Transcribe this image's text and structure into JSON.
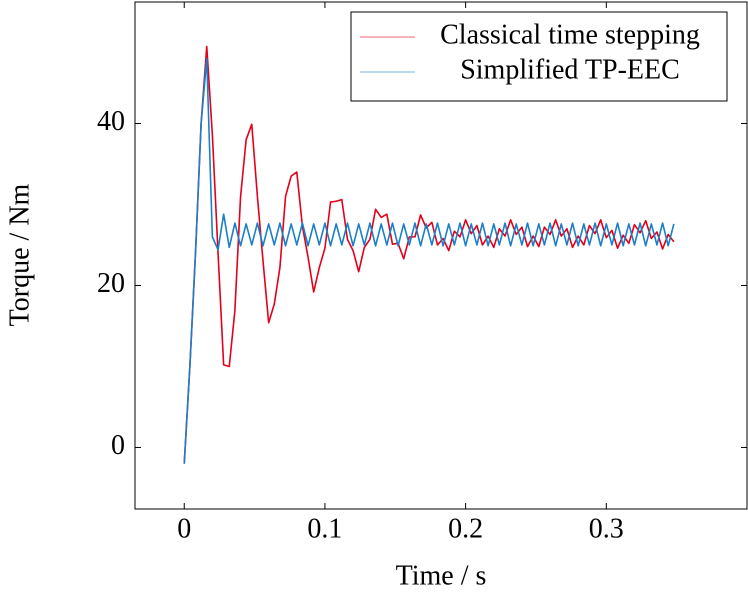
{
  "chart_data": {
    "type": "line",
    "xlabel": "Time / s",
    "ylabel": "Torque / Nm",
    "xlim": [
      -0.035,
      0.4
    ],
    "ylim": [
      -7.6,
      55
    ],
    "xticks": [
      0,
      0.1,
      0.2,
      0.3
    ],
    "yticks": [
      0,
      20,
      40
    ],
    "legend": "north east",
    "x": [
      0,
      0.004,
      0.008,
      0.012,
      0.016,
      0.02,
      0.024,
      0.028,
      0.032,
      0.036,
      0.04,
      0.044,
      0.048,
      0.052,
      0.056,
      0.06,
      0.064,
      0.068,
      0.072,
      0.076,
      0.08,
      0.084,
      0.088,
      0.092,
      0.096,
      0.1,
      0.104,
      0.108,
      0.112,
      0.116,
      0.12,
      0.124,
      0.128,
      0.132,
      0.136,
      0.14,
      0.144,
      0.148,
      0.152,
      0.156,
      0.16,
      0.164,
      0.168,
      0.172,
      0.176,
      0.18,
      0.184,
      0.188,
      0.192,
      0.196,
      0.2,
      0.204,
      0.208,
      0.212,
      0.216,
      0.22,
      0.224,
      0.228,
      0.232,
      0.236,
      0.24,
      0.244,
      0.248,
      0.252,
      0.256,
      0.26,
      0.264,
      0.268,
      0.272,
      0.276,
      0.28,
      0.284,
      0.288,
      0.292,
      0.296,
      0.3,
      0.304,
      0.308,
      0.312,
      0.316,
      0.32,
      0.324,
      0.328,
      0.332,
      0.336,
      0.34,
      0.344,
      0.348
    ],
    "series": [
      {
        "name": "Classical time stepping",
        "color": "#e3001b",
        "values": [
          -2,
          10,
          24,
          40,
          49.5,
          38.6,
          24.1,
          10.2,
          10.0,
          16.9,
          30.9,
          38.0,
          39.9,
          31.0,
          23.0,
          15.4,
          17.7,
          22.2,
          31.0,
          33.5,
          34.0,
          27.3,
          23.5,
          19.2,
          22.2,
          24.6,
          30.3,
          30.4,
          30.6,
          25.7,
          24.3,
          21.7,
          24.7,
          25.7,
          29.4,
          28.4,
          28.8,
          25.1,
          25.2,
          23.3,
          26.0,
          26.0,
          28.7,
          27.1,
          27.8,
          25.0,
          25.8,
          24.3,
          26.7,
          26.0,
          28.1,
          26.4,
          27.4,
          25.0,
          26.1,
          24.7,
          27.0,
          26.1,
          28.1,
          26.3,
          27.2,
          24.8,
          26.1,
          24.8,
          27.2,
          26.3,
          28.1,
          26.1,
          27.0,
          24.7,
          26.1,
          25.0,
          27.4,
          26.4,
          28.1,
          25.9,
          26.8,
          24.6,
          26.2,
          25.2,
          27.5,
          26.5,
          28.0,
          25.8,
          26.6,
          24.5,
          26.3,
          25.4
        ]
      },
      {
        "name": "Simplified TP-EEC",
        "color": "#1a7fc8",
        "values": [
          -2,
          10,
          24,
          40,
          48,
          26.0,
          24.4,
          28.8,
          24.7,
          27.7,
          24.9,
          27.6,
          25.0,
          27.7,
          24.9,
          27.6,
          25.0,
          27.7,
          24.9,
          27.6,
          25.0,
          27.7,
          24.9,
          27.6,
          25.0,
          27.7,
          24.9,
          27.6,
          25.0,
          27.7,
          24.9,
          27.6,
          25.0,
          27.7,
          24.9,
          27.6,
          25.0,
          27.7,
          24.9,
          27.6,
          25.0,
          27.7,
          24.9,
          27.6,
          25.0,
          27.7,
          24.9,
          27.6,
          25.0,
          27.7,
          24.9,
          27.6,
          25.0,
          27.7,
          24.9,
          27.6,
          25.0,
          27.7,
          24.9,
          27.6,
          25.0,
          27.7,
          24.9,
          27.6,
          25.0,
          27.7,
          24.9,
          27.6,
          25.0,
          27.7,
          24.9,
          27.6,
          25.0,
          27.7,
          24.9,
          27.6,
          25.0,
          27.7,
          24.9,
          27.6,
          25.0,
          27.7,
          24.9,
          27.6,
          25.0,
          27.7,
          24.9,
          27.6
        ]
      }
    ]
  }
}
